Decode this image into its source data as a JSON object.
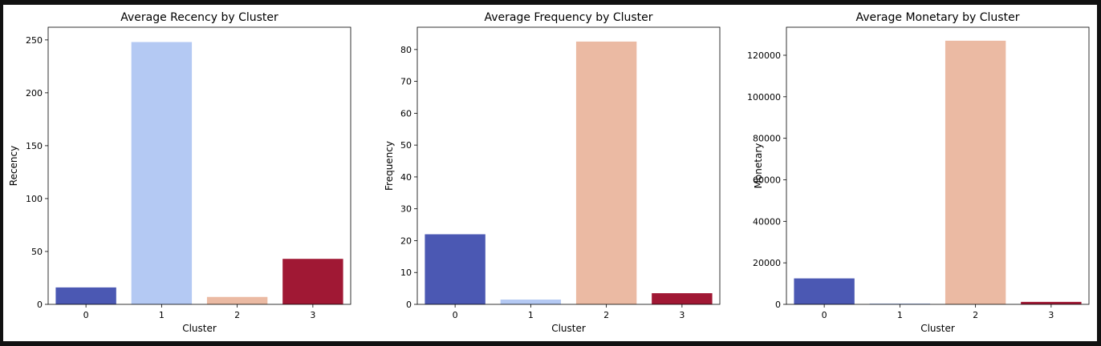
{
  "chart_data": [
    {
      "type": "bar",
      "title": "Average Recency by Cluster",
      "xlabel": "Cluster",
      "ylabel": "Recency",
      "categories": [
        "0",
        "1",
        "2",
        "3"
      ],
      "values": [
        16,
        248,
        7,
        43
      ],
      "colors": [
        "#4b58b3",
        "#b4c9f3",
        "#ebbaa3",
        "#a01834"
      ],
      "ylim": [
        0,
        262
      ],
      "yticks": [
        0,
        50,
        100,
        150,
        200,
        250
      ],
      "ytick_labels": [
        "0",
        "50",
        "100",
        "150",
        "200",
        "250"
      ]
    },
    {
      "type": "bar",
      "title": "Average Frequency by Cluster",
      "xlabel": "Cluster",
      "ylabel": "Frequency",
      "categories": [
        "0",
        "1",
        "2",
        "3"
      ],
      "values": [
        22,
        1.5,
        82.5,
        3.5
      ],
      "colors": [
        "#4b58b3",
        "#b4c9f3",
        "#ebbaa3",
        "#a01834"
      ],
      "ylim": [
        0,
        87
      ],
      "yticks": [
        0,
        10,
        20,
        30,
        40,
        50,
        60,
        70,
        80
      ],
      "ytick_labels": [
        "0",
        "10",
        "20",
        "30",
        "40",
        "50",
        "60",
        "70",
        "80"
      ]
    },
    {
      "type": "bar",
      "title": "Average Monetary by Cluster",
      "xlabel": "Cluster",
      "ylabel": "Monetary",
      "categories": [
        "0",
        "1",
        "2",
        "3"
      ],
      "values": [
        12500,
        400,
        127000,
        1200
      ],
      "colors": [
        "#4b58b3",
        "#b4c9f3",
        "#ebbaa3",
        "#a01834"
      ],
      "ylim": [
        0,
        133500
      ],
      "yticks": [
        0,
        20000,
        40000,
        60000,
        80000,
        100000,
        120000
      ],
      "ytick_labels": [
        "0",
        "20000",
        "40000",
        "60000",
        "80000",
        "100000",
        "120000"
      ]
    }
  ]
}
